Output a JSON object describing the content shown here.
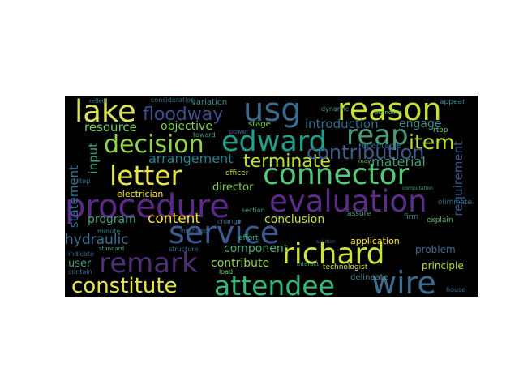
{
  "colors": {
    "background": "#000000",
    "page": "#ffffff",
    "palette_viridis": [
      "#440154",
      "#482878",
      "#3e4989",
      "#31688e",
      "#26828e",
      "#1f9e89",
      "#35b779",
      "#6ece58",
      "#b5de2b",
      "#fde725"
    ]
  },
  "words": [
    "lake",
    "usg",
    "reason",
    "floodway",
    "edward",
    "reap",
    "item",
    "decision",
    "letter",
    "connector",
    "terminate",
    "contribution",
    "procedure",
    "evaluation",
    "service",
    "remark",
    "richard",
    "constitute",
    "attendee",
    "wire",
    "resource",
    "objective",
    "introduction",
    "engage",
    "arrangement",
    "material",
    "input",
    "statement",
    "requirement",
    "content",
    "program",
    "conclusion",
    "hydraulic",
    "user",
    "component",
    "contribute",
    "director",
    "electrician",
    "problem",
    "application",
    "principle",
    "technologist",
    "delineate",
    "variation",
    "consideration",
    "stage",
    "officer",
    "effort",
    "section",
    "structure",
    "receptacle",
    "rtop",
    "eliminate",
    "assure",
    "firm",
    "explain",
    "indicate",
    "contain",
    "minute",
    "standard",
    "load",
    "house",
    "change",
    "appear",
    "dynamic",
    "economic",
    "power",
    "toward",
    "mechanic",
    "step",
    "reflect",
    "may",
    "interact",
    "solution",
    "computation"
  ]
}
